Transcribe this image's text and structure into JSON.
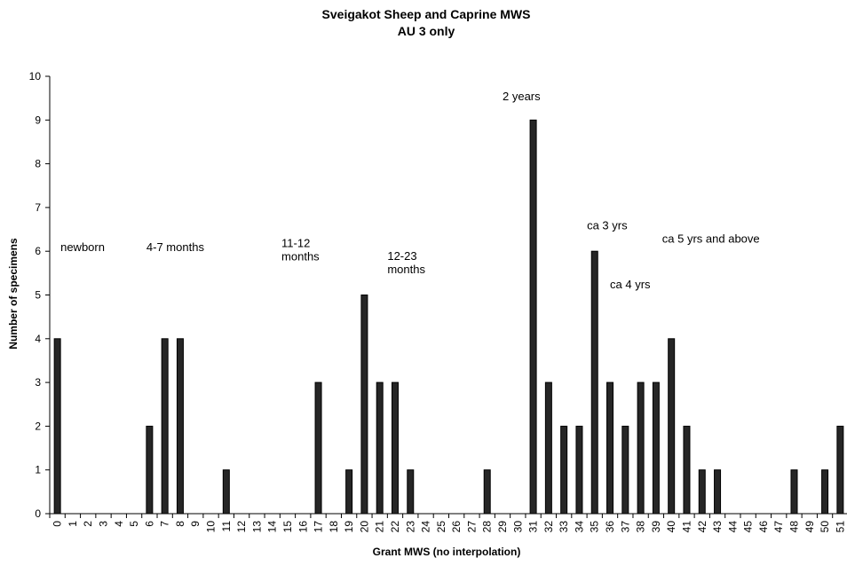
{
  "chart_data": {
    "type": "bar",
    "title": "Sveigakot Sheep and Caprine MWS",
    "subtitle": "AU 3 only",
    "xlabel": "Grant MWS (no interpolation)",
    "ylabel": "Number of specimens",
    "ylim": [
      0,
      10
    ],
    "yticks": [
      "0",
      "1",
      "2",
      "3",
      "4",
      "5",
      "6",
      "7",
      "8",
      "9",
      "10"
    ],
    "grid": false,
    "categories": [
      "0",
      "1",
      "2",
      "3",
      "4",
      "5",
      "6",
      "7",
      "8",
      "9",
      "10",
      "11",
      "12",
      "13",
      "14",
      "15",
      "16",
      "17",
      "18",
      "19",
      "20",
      "21",
      "22",
      "23",
      "24",
      "25",
      "26",
      "27",
      "28",
      "29",
      "30",
      "31",
      "32",
      "33",
      "34",
      "35",
      "36",
      "37",
      "38",
      "39",
      "40",
      "41",
      "42",
      "43",
      "44",
      "45",
      "46",
      "47",
      "48",
      "49",
      "50",
      "51"
    ],
    "values": [
      4,
      0,
      0,
      0,
      0,
      0,
      2,
      4,
      4,
      0,
      0,
      1,
      0,
      0,
      0,
      0,
      0,
      3,
      0,
      1,
      5,
      3,
      3,
      1,
      0,
      0,
      0,
      0,
      1,
      0,
      0,
      9,
      3,
      2,
      2,
      6,
      3,
      2,
      3,
      3,
      4,
      2,
      1,
      1,
      0,
      0,
      0,
      0,
      1,
      0,
      1,
      2
    ],
    "bar_color": "#262626",
    "annotations": [
      {
        "lines": [
          "newborn"
        ],
        "x": 0.2,
        "y": 6.0
      },
      {
        "lines": [
          "4-7 months"
        ],
        "x": 5.8,
        "y": 6.0
      },
      {
        "lines": [
          "11-12",
          "months"
        ],
        "x": 14.6,
        "y": 6.1
      },
      {
        "lines": [
          "12-23",
          "months"
        ],
        "x": 21.5,
        "y": 5.8
      },
      {
        "lines": [
          "2 years"
        ],
        "x": 29.0,
        "y": 9.45
      },
      {
        "lines": [
          "ca 3 yrs"
        ],
        "x": 34.5,
        "y": 6.5
      },
      {
        "lines": [
          "ca 4 yrs"
        ],
        "x": 36.0,
        "y": 5.15
      },
      {
        "lines": [
          "ca 5 yrs and above"
        ],
        "x": 39.4,
        "y": 6.2
      }
    ]
  }
}
